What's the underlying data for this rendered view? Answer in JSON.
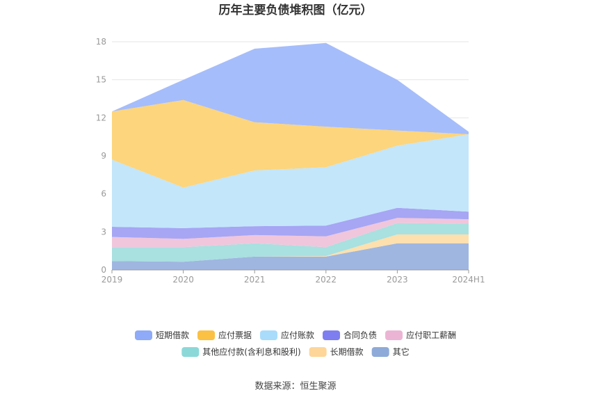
{
  "chart_data": {
    "type": "area",
    "stacked": true,
    "title": "历年主要负债堆积图（亿元）",
    "categories": [
      "2019",
      "2020",
      "2021",
      "2022",
      "2023",
      "2024H1"
    ],
    "ylim": [
      0,
      18
    ],
    "yticks": [
      0,
      3,
      6,
      9,
      12,
      15,
      18
    ],
    "grid": true,
    "legend_position": "bottom",
    "series": [
      {
        "name": "其它",
        "color": "#9fb6e0",
        "values": [
          0.7,
          0.65,
          1.05,
          1.05,
          2.1,
          2.1
        ]
      },
      {
        "name": "长期借款",
        "color": "#fde0ad",
        "values": [
          0,
          0,
          0,
          0.05,
          0.7,
          0.7
        ]
      },
      {
        "name": "其他应付款(含利息和股利)",
        "color": "#a9e0e0",
        "values": [
          1.1,
          1.15,
          1.05,
          0.7,
          0.9,
          0.85
        ]
      },
      {
        "name": "应付职工薪酬",
        "color": "#f0c6dc",
        "values": [
          0.8,
          0.65,
          0.65,
          0.85,
          0.4,
          0.35
        ]
      },
      {
        "name": "合同负债",
        "color": "#a6a6f4",
        "values": [
          0.8,
          0.85,
          0.7,
          0.85,
          0.8,
          0.6
        ]
      },
      {
        "name": "应付账款",
        "color": "#c3e6fb",
        "values": [
          5.3,
          3.2,
          4.4,
          4.6,
          4.9,
          6.1
        ]
      },
      {
        "name": "应付票据",
        "color": "#fdd57c",
        "values": [
          3.8,
          6.9,
          3.8,
          3.2,
          1.2,
          0
        ]
      },
      {
        "name": "短期借款",
        "color": "#a6bdfb",
        "values": [
          0,
          1.6,
          5.8,
          6.6,
          4.0,
          0.2
        ]
      }
    ],
    "legend": [
      {
        "name": "短期借款",
        "color": "#8eaaf8"
      },
      {
        "name": "应付票据",
        "color": "#fbc144"
      },
      {
        "name": "应付账款",
        "color": "#a9dcfb"
      },
      {
        "name": "合同负债",
        "color": "#7e7ef0"
      },
      {
        "name": "应付职工薪酬",
        "color": "#ecb4d4"
      },
      {
        "name": "其他应付款(含利息和股利)",
        "color": "#8cd8d8"
      },
      {
        "name": "长期借款",
        "color": "#fed69a"
      },
      {
        "name": "其它",
        "color": "#8eaad8"
      }
    ],
    "source": "数据来源：恒生聚源"
  }
}
